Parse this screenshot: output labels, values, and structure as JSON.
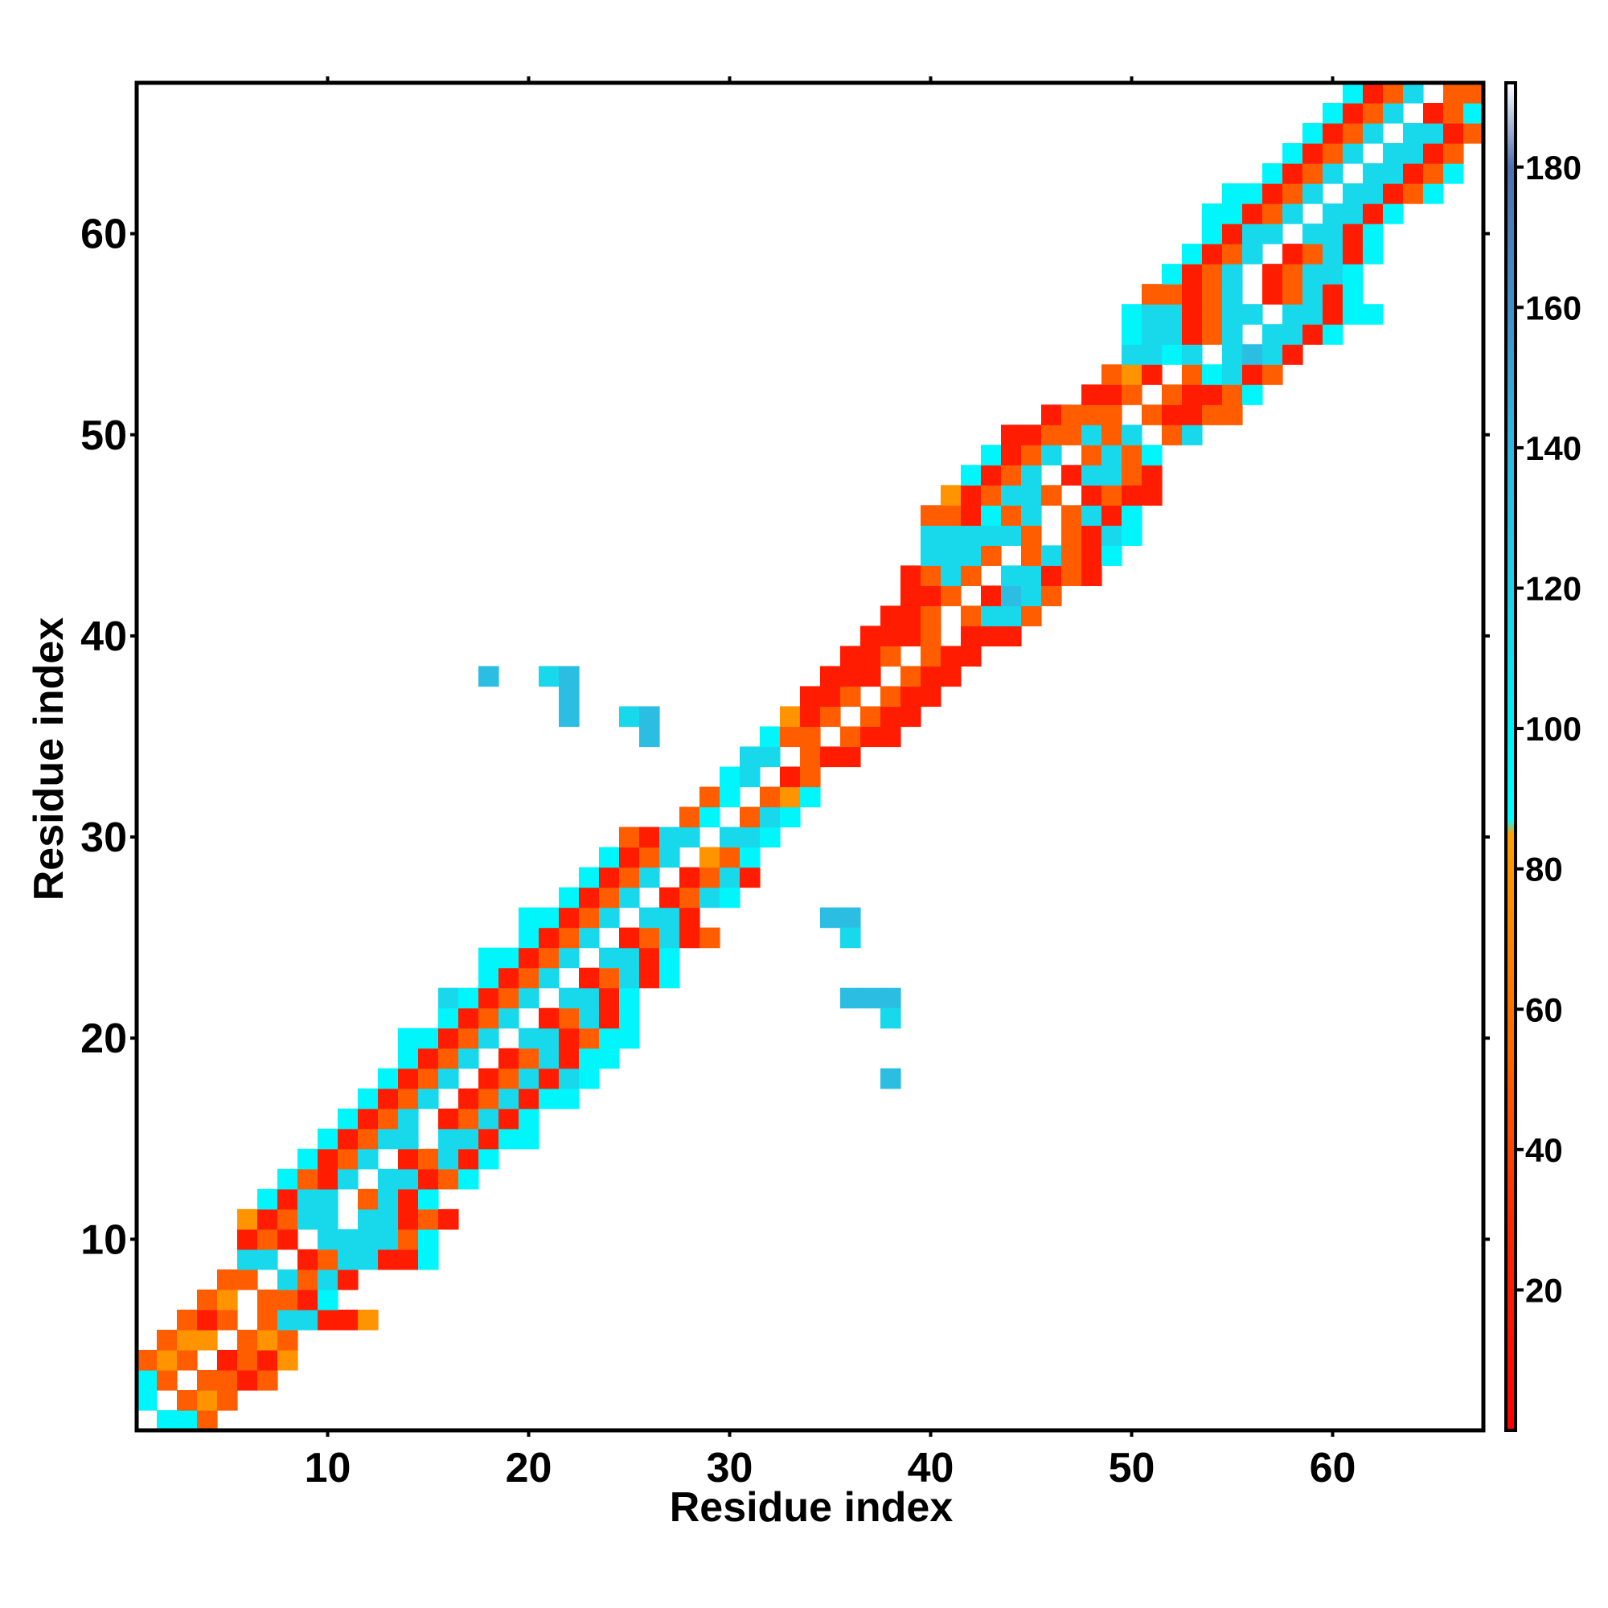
{
  "chart_data": {
    "type": "heatmap",
    "xlabel": "Residue index",
    "ylabel": "Residue index",
    "xlim": [
      0.5,
      67.5
    ],
    "ylim": [
      0.5,
      67.5
    ],
    "x_ticks": [
      10,
      20,
      30,
      40,
      50,
      60
    ],
    "y_ticks": [
      10,
      20,
      30,
      40,
      50,
      60
    ],
    "colorbar": {
      "range": [
        0,
        192
      ],
      "ticks": [
        20,
        40,
        60,
        80,
        100,
        120,
        140,
        160,
        180
      ],
      "stops": [
        {
          "value": 0,
          "color": "#ff0000"
        },
        {
          "value": 30,
          "color": "#ff2a00"
        },
        {
          "value": 55,
          "color": "#ff6a00"
        },
        {
          "value": 85,
          "color": "#ffa000"
        },
        {
          "value": 87,
          "color": "#00ffff"
        },
        {
          "value": 100,
          "color": "#00f0f8"
        },
        {
          "value": 120,
          "color": "#20d0e8"
        },
        {
          "value": 140,
          "color": "#30b8e0"
        },
        {
          "value": 160,
          "color": "#4090c8"
        },
        {
          "value": 180,
          "color": "#5070b0"
        },
        {
          "value": 192,
          "color": "#ffffff"
        }
      ]
    },
    "cell_values": {
      "r": 20,
      "o": 50,
      "y": 78,
      "c": 95,
      "b": 115,
      "d": 135
    },
    "band_rows": [
      {
        "y": 1,
        "x0": 2,
        "cells": "cco"
      },
      {
        "y": 2,
        "x0": 1,
        "cells": "c.oyo"
      },
      {
        "y": 3,
        "x0": 1,
        "cells": "co.ooro"
      },
      {
        "y": 4,
        "x0": 1,
        "cells": "oyo.rory"
      },
      {
        "y": 5,
        "x0": 2,
        "cells": "oyy.oyo"
      },
      {
        "y": 6,
        "x0": 3,
        "cells": "oro.obbrry"
      },
      {
        "y": 7,
        "x0": 4,
        "cells": "oy.oorc"
      },
      {
        "y": 8,
        "x0": 5,
        "cells": "oo.bobr"
      },
      {
        "y": 9,
        "x0": 6,
        "cells": "bb.robbrrc"
      },
      {
        "y": 10,
        "x0": 6,
        "cells": "ror.bbbboc"
      },
      {
        "y": 11,
        "x0": 6,
        "cells": "yrobb.bbror"
      },
      {
        "y": 12,
        "x0": 7,
        "cells": "crbb.obrc"
      },
      {
        "y": 13,
        "x0": 8,
        "cells": "corb.bbroc"
      },
      {
        "y": 14,
        "x0": 9,
        "cells": "crob.robrc"
      },
      {
        "y": 15,
        "x0": 10,
        "cells": "crobb.bbrcc"
      },
      {
        "y": 16,
        "x0": 11,
        "cells": "crob.robrc"
      },
      {
        "y": 17,
        "x0": 12,
        "cells": "crob.robrcc"
      },
      {
        "y": 18,
        "x0": 13,
        "cells": "crob.robrbc"
      },
      {
        "y": 19,
        "x0": 14,
        "cells": "crob.robrcc"
      },
      {
        "y": 20,
        "x0": 14,
        "cells": "ccrob.bbrocc"
      },
      {
        "y": 21,
        "x0": 16,
        "cells": "crob.robrc"
      },
      {
        "y": 22,
        "x0": 16,
        "cells": "bcrob.bbrc"
      },
      {
        "y": 23,
        "x0": 18,
        "cells": "crob.robrc"
      },
      {
        "y": 24,
        "x0": 18,
        "cells": "ccrob.bbrc"
      },
      {
        "y": 25,
        "x0": 20,
        "cells": "crob.robro"
      },
      {
        "y": 26,
        "x0": 20,
        "cells": "ccrob.bbr"
      },
      {
        "y": 27,
        "x0": 22,
        "cells": "crob.robc"
      },
      {
        "y": 28,
        "x0": 23,
        "cells": "crob.robr"
      },
      {
        "y": 29,
        "x0": 24,
        "cells": "crob.yoc"
      },
      {
        "y": 30,
        "x0": 25,
        "cells": "orbb.bbc"
      },
      {
        "y": 31,
        "x0": 28,
        "cells": "oc.obc"
      },
      {
        "y": 32,
        "x0": 29,
        "cells": "oc.oyc"
      },
      {
        "y": 33,
        "x0": 30,
        "cells": "cb.ro"
      },
      {
        "y": 34,
        "x0": 31,
        "cells": "bb.orr"
      },
      {
        "y": 35,
        "x0": 32,
        "cells": "coo.orr"
      },
      {
        "y": 36,
        "x0": 33,
        "cells": "yro.orr"
      },
      {
        "y": 37,
        "x0": 34,
        "cells": "rro.orr"
      },
      {
        "y": 38,
        "x0": 35,
        "cells": "rrr.orr"
      },
      {
        "y": 39,
        "x0": 36,
        "cells": "rro.orr"
      },
      {
        "y": 40,
        "x0": 37,
        "cells": "rrro.rrr"
      },
      {
        "y": 41,
        "x0": 38,
        "cells": "rro.obbo"
      },
      {
        "y": 42,
        "x0": 39,
        "cells": "rro.rdbo"
      },
      {
        "y": 43,
        "x0": 39,
        "cells": "robo.bbror"
      },
      {
        "y": 44,
        "x0": 40,
        "cells": "bbbo.oborc"
      },
      {
        "y": 45,
        "x0": 40,
        "cells": "bbbbbo.orbc"
      },
      {
        "y": 46,
        "x0": 40,
        "cells": "oorcob.obrc"
      },
      {
        "y": 47,
        "x0": 41,
        "cells": "yrobbo.rorr"
      },
      {
        "y": 48,
        "x0": 42,
        "cells": "crob.rbbor"
      },
      {
        "y": 49,
        "x0": 43,
        "cells": "crob.oboc"
      },
      {
        "y": 50,
        "x0": 44,
        "cells": "rroobob.ob"
      },
      {
        "y": 51,
        "x0": 46,
        "cells": "rooo.orroo"
      },
      {
        "y": 52,
        "x0": 48,
        "cells": "rro.orroc"
      },
      {
        "y": 53,
        "x0": 49,
        "cells": "oyr.ocbro"
      },
      {
        "y": 54,
        "x0": 50,
        "cells": "bbcb.bdbr"
      },
      {
        "y": 55,
        "x0": 50,
        "cells": "cbbrob.bbrc"
      },
      {
        "y": 56,
        "x0": 50,
        "cells": "cbbrobb.bbrcc"
      },
      {
        "y": 57,
        "x0": 51,
        "cells": "oorob.robrc"
      },
      {
        "y": 58,
        "x0": 52,
        "cells": "crob.robbc"
      },
      {
        "y": 59,
        "x0": 53,
        "cells": "crob.robrc"
      },
      {
        "y": 60,
        "x0": 54,
        "cells": "crbb.bbrc"
      },
      {
        "y": 61,
        "x0": 54,
        "cells": "ccrob.bbrc"
      },
      {
        "y": 62,
        "x0": 55,
        "cells": "ccrob.bbroc"
      },
      {
        "y": 63,
        "x0": 57,
        "cells": "crob.bbroc"
      },
      {
        "y": 64,
        "x0": 58,
        "cells": "crob.bbro"
      },
      {
        "y": 65,
        "x0": 59,
        "cells": "crob.bbro"
      },
      {
        "y": 66,
        "x0": 60,
        "cells": "crob.roc"
      },
      {
        "y": 67,
        "x0": 61,
        "cells": "crob.oo"
      }
    ],
    "contact_cells": [
      {
        "x": 18,
        "y": 38,
        "c": "d"
      },
      {
        "x": 21,
        "y": 38,
        "c": "b"
      },
      {
        "x": 22,
        "y": 38,
        "c": "d"
      },
      {
        "x": 22,
        "y": 37,
        "c": "d"
      },
      {
        "x": 22,
        "y": 36,
        "c": "d"
      },
      {
        "x": 25,
        "y": 36,
        "c": "b"
      },
      {
        "x": 26,
        "y": 36,
        "c": "d"
      },
      {
        "x": 26,
        "y": 35,
        "c": "d"
      },
      {
        "x": 35,
        "y": 26,
        "c": "d"
      },
      {
        "x": 36,
        "y": 26,
        "c": "d"
      },
      {
        "x": 36,
        "y": 25,
        "c": "b"
      },
      {
        "x": 36,
        "y": 22,
        "c": "d"
      },
      {
        "x": 37,
        "y": 22,
        "c": "d"
      },
      {
        "x": 38,
        "y": 22,
        "c": "d"
      },
      {
        "x": 38,
        "y": 21,
        "c": "b"
      },
      {
        "x": 38,
        "y": 18,
        "c": "d"
      }
    ]
  }
}
